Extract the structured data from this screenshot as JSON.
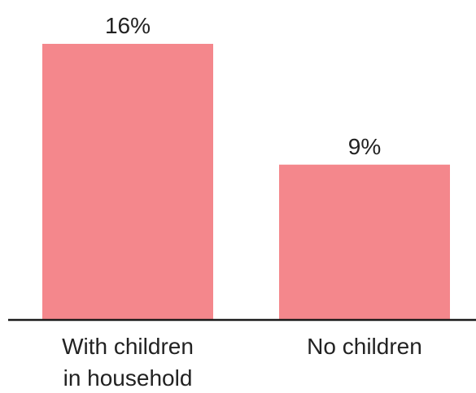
{
  "colors": {
    "bar": "#f4878c",
    "axis": "#1a1a1a",
    "text": "#222222",
    "background": "#ffffff"
  },
  "chart_data": {
    "type": "bar",
    "categories": [
      [
        "With children",
        "in household"
      ],
      [
        "No children"
      ]
    ],
    "values": [
      16,
      9
    ],
    "value_labels": [
      "16%",
      "9%"
    ],
    "unit": "%",
    "ylim": [
      0,
      18
    ],
    "grid": false,
    "legend": "none"
  }
}
